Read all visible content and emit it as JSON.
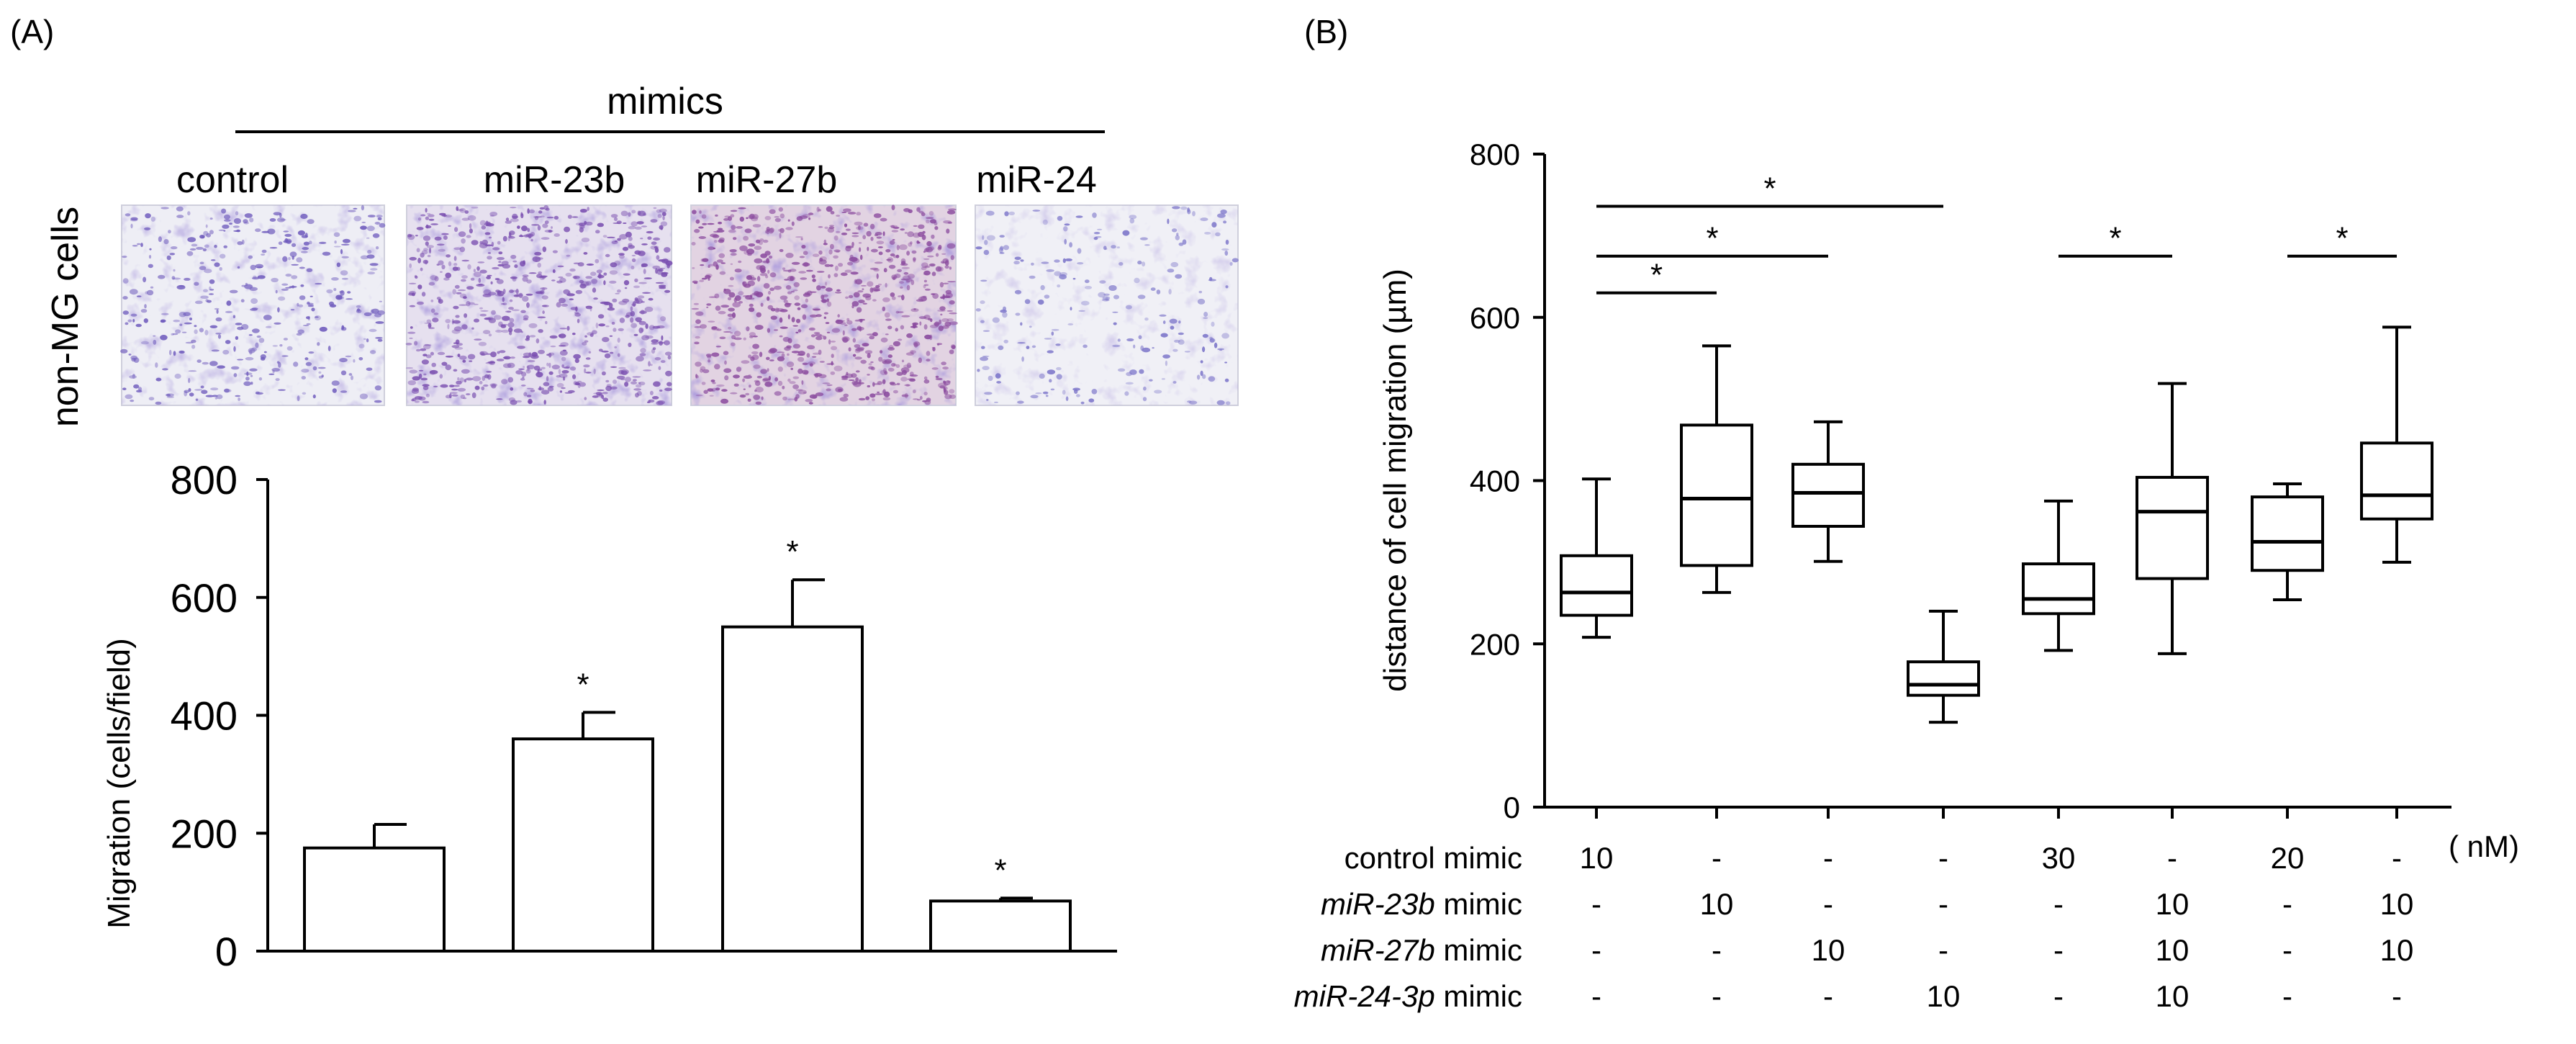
{
  "panel_a": {
    "letter": "(A)",
    "header": "mimics",
    "row_label": "non-MG cells",
    "micrographs": [
      {
        "label": "control",
        "stain_density": 0.45,
        "color": "#6f5bbd"
      },
      {
        "label": "miR-23b",
        "stain_density": 0.85,
        "color": "#7a4fb0"
      },
      {
        "label": "miR-27b",
        "stain_density": 0.9,
        "color": "#8a4a9e"
      },
      {
        "label": "miR-24",
        "stain_density": 0.25,
        "color": "#7b74c9"
      }
    ]
  },
  "panel_b": {
    "letter": "(B)",
    "unit": "( nM)",
    "table": {
      "rows": [
        {
          "label": "control mimic",
          "italic_part": "",
          "suffix": "",
          "values": [
            "10",
            "-",
            "-",
            "-",
            "30",
            "-",
            "20",
            "-"
          ]
        },
        {
          "label": "",
          "italic_part": "miR-23b",
          "suffix": " mimic",
          "values": [
            "-",
            "10",
            "-",
            "-",
            "-",
            "10",
            "-",
            "10"
          ]
        },
        {
          "label": "",
          "italic_part": "miR-27b",
          "suffix": " mimic",
          "values": [
            "-",
            "-",
            "10",
            "-",
            "-",
            "10",
            "-",
            "10"
          ]
        },
        {
          "label": "",
          "italic_part": "miR-24-3p",
          "suffix": " mimic",
          "values": [
            "-",
            "-",
            "-",
            "10",
            "-",
            "10",
            "-",
            "-"
          ]
        }
      ]
    }
  },
  "chart_data": [
    {
      "type": "bar",
      "categories": [
        "control",
        "miR-23b",
        "miR-27b",
        "miR-24"
      ],
      "values": [
        175,
        360,
        550,
        85
      ],
      "errors": [
        40,
        45,
        80,
        5
      ],
      "significance": [
        "",
        "*",
        "*",
        "*"
      ],
      "xlabel": "",
      "ylabel": "Migration (cells/field)",
      "ylim": [
        0,
        800
      ],
      "yticks": [
        0,
        200,
        400,
        600,
        800
      ],
      "grid": false
    },
    {
      "type": "box",
      "groups": [
        "1",
        "2",
        "3",
        "4",
        "5",
        "6",
        "7",
        "8"
      ],
      "boxes": [
        {
          "min": 208,
          "q1": 235,
          "median": 263,
          "q3": 308,
          "max": 402
        },
        {
          "min": 263,
          "q1": 296,
          "median": 378,
          "q3": 468,
          "max": 565
        },
        {
          "min": 301,
          "q1": 344,
          "median": 385,
          "q3": 420,
          "max": 472
        },
        {
          "min": 104,
          "q1": 137,
          "median": 150,
          "q3": 178,
          "max": 240
        },
        {
          "min": 192,
          "q1": 237,
          "median": 255,
          "q3": 298,
          "max": 375
        },
        {
          "min": 188,
          "q1": 280,
          "median": 362,
          "q3": 404,
          "max": 519
        },
        {
          "min": 254,
          "q1": 290,
          "median": 325,
          "q3": 380,
          "max": 396
        },
        {
          "min": 300,
          "q1": 353,
          "median": 382,
          "q3": 446,
          "max": 588
        }
      ],
      "ylabel": "distance of cell migration (µm)",
      "ylim": [
        0,
        800
      ],
      "yticks": [
        0,
        200,
        400,
        600,
        800
      ],
      "significance": [
        {
          "from": 1,
          "to": 2,
          "label": "*",
          "level": 630
        },
        {
          "from": 1,
          "to": 3,
          "label": "*",
          "level": 675
        },
        {
          "from": 1,
          "to": 4,
          "label": "*",
          "level": 736
        },
        {
          "from": 5,
          "to": 6,
          "label": "*",
          "level": 675
        },
        {
          "from": 7,
          "to": 8,
          "label": "*",
          "level": 675
        }
      ],
      "grid": false
    }
  ]
}
